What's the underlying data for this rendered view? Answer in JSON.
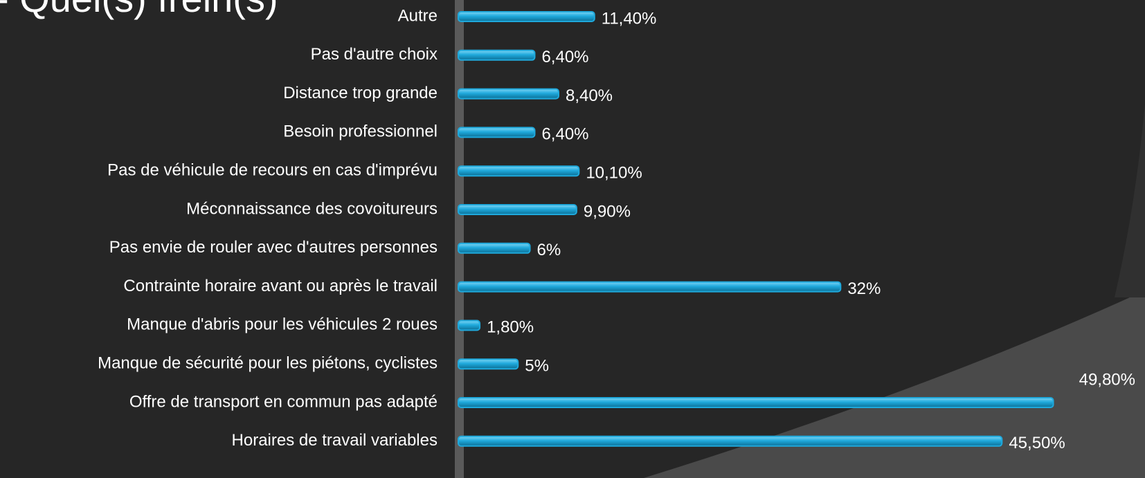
{
  "chart_data": {
    "type": "bar",
    "orientation": "horizontal",
    "title": "- Quel(s) frein(s)",
    "categories": [
      "Autre",
      "Pas d'autre choix",
      "Distance trop grande",
      "Besoin professionnel",
      "Pas de véhicule de recours en cas d'imprévu",
      "Méconnaissance des covoitureurs",
      "Pas envie de rouler avec d'autres personnes",
      "Contrainte horaire avant ou après le travail",
      "Manque d'abris pour les véhicules 2 roues",
      "Manque de sécurité pour les piétons, cyclistes",
      "Offre de transport en commun pas adapté",
      "Horaires de travail variables"
    ],
    "values": [
      11.4,
      6.4,
      8.4,
      6.4,
      10.1,
      9.9,
      6,
      32,
      1.8,
      5,
      49.8,
      45.5
    ],
    "value_labels": [
      "11,40%",
      "6,40%",
      "8,40%",
      "6,40%",
      "10,10%",
      "9,90%",
      "6%",
      "32%",
      "1,80%",
      "5%",
      "49,80%",
      "45,50%"
    ],
    "color": "#1fa9dc",
    "xlim": [
      0,
      50
    ]
  }
}
